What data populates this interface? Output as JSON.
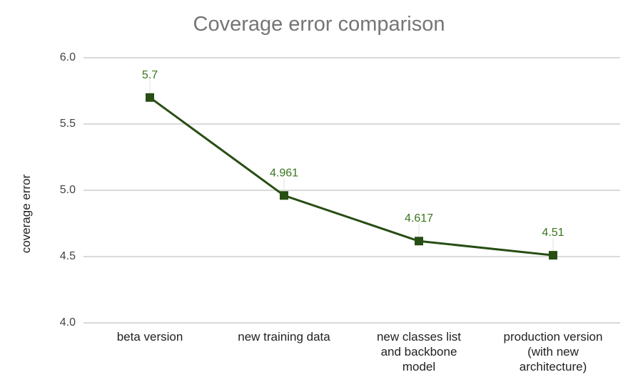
{
  "chart_data": {
    "type": "line",
    "title": "Coverage error comparison",
    "xlabel": "",
    "ylabel": "coverage error",
    "ylim": [
      4.0,
      6.0
    ],
    "yticks": [
      "6.0",
      "5.5",
      "5.0",
      "4.5",
      "4.0"
    ],
    "grid": true,
    "legend": "none",
    "categories": [
      "beta version",
      "new training data",
      "new classes list\nand backbone\nmodel",
      "production version\n(with new\narchitecture)"
    ],
    "series": [
      {
        "name": "coverage error",
        "values": [
          5.7,
          4.961,
          4.617,
          4.51
        ],
        "data_labels": [
          "5.7",
          "4.961",
          "4.617",
          "4.51"
        ],
        "color": "#274e13",
        "marker": "square"
      }
    ]
  }
}
